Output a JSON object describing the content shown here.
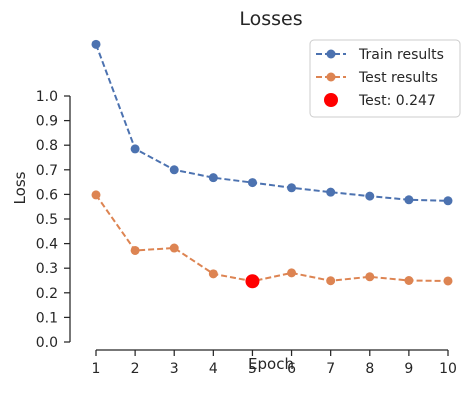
{
  "chart_data": {
    "type": "line",
    "title": "Losses",
    "xlabel": "Epoch",
    "ylabel": "Loss",
    "x": [
      1,
      2,
      3,
      4,
      5,
      6,
      7,
      8,
      9,
      10
    ],
    "xlim": [
      1,
      10
    ],
    "ylim": [
      0.0,
      1.0
    ],
    "y_ticks": [
      0.0,
      0.1,
      0.2,
      0.3,
      0.4,
      0.5,
      0.6,
      0.7,
      0.8,
      0.9,
      1.0
    ],
    "x_ticks": [
      1,
      2,
      3,
      4,
      5,
      6,
      7,
      8,
      9,
      10
    ],
    "grid": false,
    "legend_position": "top-right",
    "series": [
      {
        "name": "Train results",
        "color": "#4c72b0",
        "style": "dashed-line-with-circle-markers",
        "values": [
          1.21,
          0.785,
          0.7,
          0.668,
          0.648,
          0.627,
          0.609,
          0.593,
          0.578,
          0.574
        ]
      },
      {
        "name": "Test results",
        "color": "#dd8452",
        "style": "dashed-line-with-circle-markers",
        "values": [
          0.598,
          0.372,
          0.382,
          0.277,
          0.247,
          0.281,
          0.249,
          0.265,
          0.25,
          0.248
        ]
      }
    ],
    "highlight": {
      "label": "Test: 0.247",
      "x": 5,
      "y": 0.247,
      "color": "#ff0000"
    }
  }
}
